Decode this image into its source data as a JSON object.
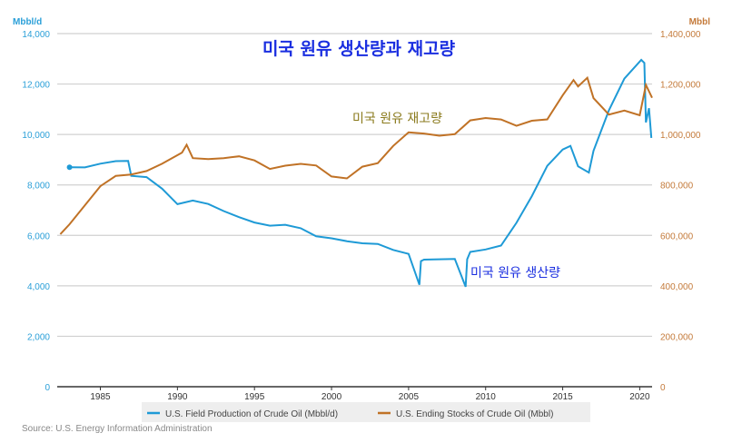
{
  "chart_data": {
    "type": "line",
    "title": "미국 원유 생산량과 재고량",
    "annotations": [
      {
        "text": "미국 원유 재고량",
        "color": "#8a7a1c"
      },
      {
        "text": "미국 원유 생산량",
        "color": "#1a2ee0"
      }
    ],
    "y_left": {
      "label": "Mbbl/d",
      "range": [
        0,
        14000
      ],
      "ticks": [
        "0",
        "2,000",
        "4,000",
        "6,000",
        "8,000",
        "10,000",
        "12,000",
        "14,000"
      ],
      "color": "#2a9fd8"
    },
    "y_right": {
      "label": "Mbbl",
      "range": [
        0,
        1400000
      ],
      "ticks": [
        "0",
        "200,000",
        "400,000",
        "600,000",
        "800,000",
        "1,000,000",
        "1,200,000",
        "1,400,000"
      ],
      "color": "#c47a3a"
    },
    "x_axis": {
      "range": [
        1982.2,
        2020.8
      ],
      "ticks": [
        "1985",
        "1990",
        "1995",
        "2000",
        "2005",
        "2010",
        "2015",
        "2020"
      ]
    },
    "grid": true,
    "legend_placement": "bottom",
    "series": [
      {
        "name": "U.S. Field Production of Crude Oil (Mbbl/d)",
        "axis": "left",
        "color": "#1e9ad6",
        "x": [
          1983,
          1984,
          1985,
          1986,
          1986.8,
          1987,
          1988,
          1989,
          1990,
          1991,
          1992,
          1993,
          1994,
          1995,
          1996,
          1997,
          1998,
          1999,
          2000,
          2001,
          2002,
          2003,
          2004,
          2005,
          2005.7,
          2005.8,
          2006,
          2007,
          2008,
          2008.7,
          2008.8,
          2009,
          2010,
          2011,
          2012,
          2013,
          2014,
          2015,
          2015.5,
          2016,
          2016.7,
          2017,
          2018,
          2019,
          2020.1,
          2020.3,
          2020.4,
          2020.6,
          2020.75
        ],
        "y": [
          8700,
          8750,
          8900,
          8950,
          8900,
          8300,
          8300,
          7900,
          7300,
          7400,
          7200,
          6900,
          6700,
          6550,
          6450,
          6450,
          6250,
          5900,
          5850,
          5800,
          5750,
          5700,
          5400,
          5200,
          4000,
          5000,
          5100,
          5100,
          5050,
          3900,
          5000,
          5350,
          5500,
          5650,
          6500,
          7500,
          8700,
          9400,
          9600,
          8800,
          8500,
          9300,
          10900,
          12200,
          13000,
          12900,
          10500,
          11000,
          9800
        ]
      },
      {
        "name": "U.S. Ending Stocks of Crude Oil (Mbbl)",
        "axis": "right",
        "color": "#c07226",
        "x": [
          1982.4,
          1983,
          1984,
          1985,
          1986,
          1987,
          1988,
          1989,
          1990.3,
          1990.6,
          1991,
          1992,
          1993,
          1994,
          1995,
          1996,
          1997,
          1998,
          1999,
          2000,
          2001,
          2002,
          2003,
          2004,
          2005,
          2006,
          2007,
          2008,
          2009,
          2010,
          2011,
          2012,
          2013,
          2014,
          2015,
          2015.7,
          2016,
          2016.6,
          2017,
          2018,
          2019,
          2020,
          2020.4,
          2020.8
        ],
        "y": [
          610000,
          650000,
          720000,
          790000,
          830000,
          840000,
          860000,
          890000,
          930000,
          955000,
          900000,
          900000,
          910000,
          920000,
          900000,
          860000,
          870000,
          880000,
          880000,
          840000,
          830000,
          870000,
          880000,
          950000,
          1010000,
          1010000,
          1000000,
          1000000,
          1050000,
          1060000,
          1060000,
          1040000,
          1060000,
          1060000,
          1150000,
          1210000,
          1190000,
          1230000,
          1150000,
          1080000,
          1090000,
          1070000,
          1195000,
          1150000
        ]
      }
    ]
  },
  "source": "Source: U.S. Energy Information Administration"
}
